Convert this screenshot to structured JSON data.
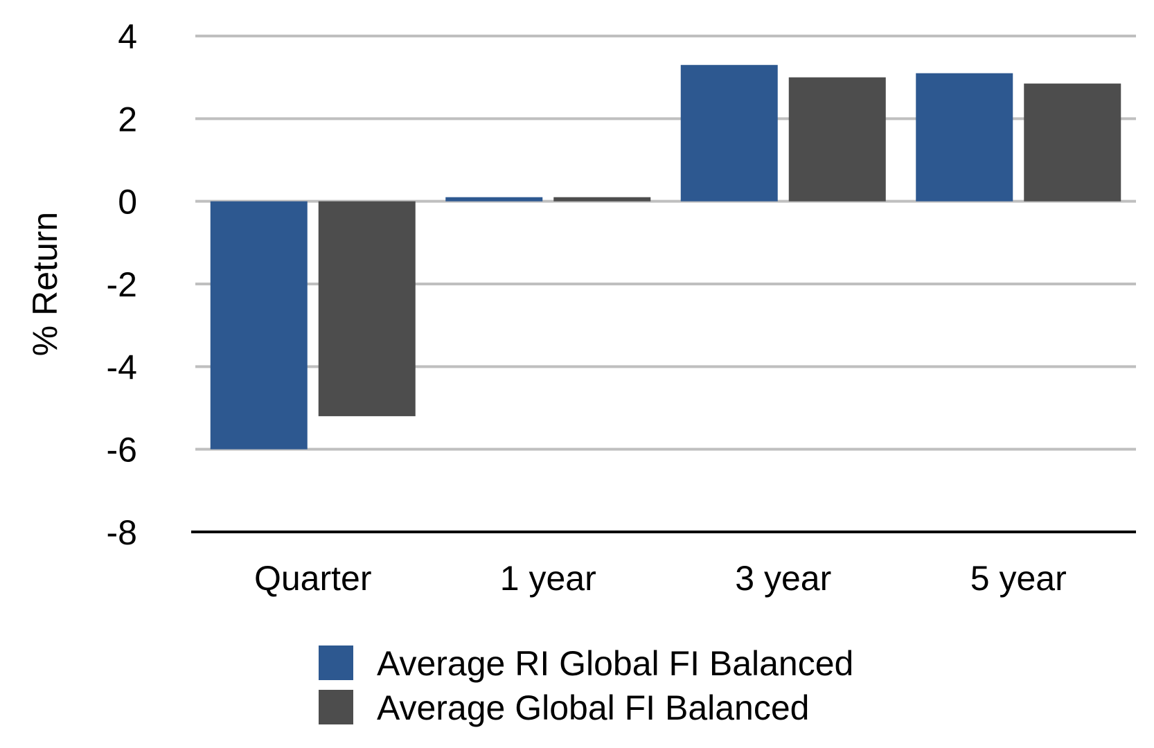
{
  "chart_data": {
    "type": "bar",
    "title": "",
    "xlabel": "",
    "ylabel": "% Return",
    "categories": [
      "Quarter",
      "1 year",
      "3 year",
      "5 year"
    ],
    "series": [
      {
        "name": "Average RI Global FI Balanced",
        "color": "#2d5890",
        "values": [
          -6.0,
          0.1,
          3.3,
          3.1
        ]
      },
      {
        "name": "Average Global FI Balanced",
        "color": "#4d4d4d",
        "values": [
          -5.2,
          0.1,
          3.0,
          2.85
        ]
      }
    ],
    "ylim": [
      -8,
      4
    ],
    "yticks": [
      4,
      2,
      0,
      -2,
      -4,
      -6,
      -8
    ],
    "grid": true,
    "legend_position": "bottom-center"
  }
}
